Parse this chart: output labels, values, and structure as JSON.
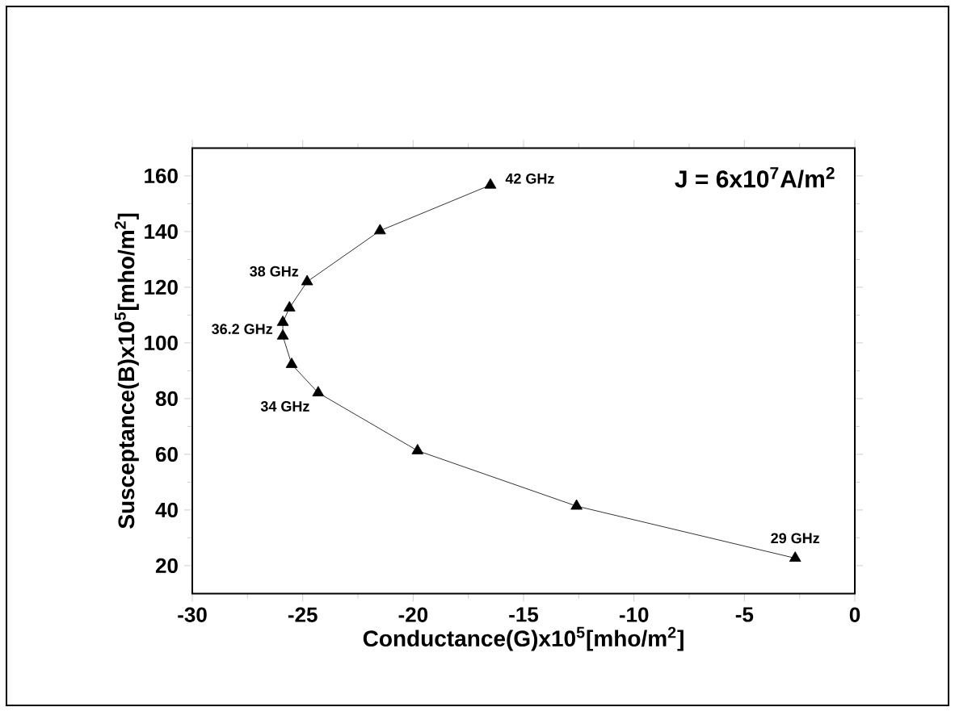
{
  "chart_data": {
    "type": "line",
    "xlabel": "Conductance(G)x10$^{5}$[mho/m$^{2}$]",
    "ylabel": "Susceptance(B)x10$^{5}$[mho/m$^{2}$]",
    "x": [
      -16.5,
      -21.5,
      -24.8,
      -25.6,
      -25.9,
      -25.9,
      -25.5,
      -24.3,
      -19.8,
      -12.6,
      -2.7
    ],
    "values": [
      156.7,
      140.3,
      122,
      112.6,
      107.4,
      102.5,
      92.3,
      82.1,
      61.3,
      41.4,
      22.7
    ],
    "color": "#000000",
    "marker": "triangle",
    "line_style": "solid",
    "grid": false,
    "xlim": [
      -30,
      0
    ],
    "xticks": [
      -30,
      -25,
      -20,
      -15,
      -10,
      -5,
      0
    ],
    "ylim": [
      10,
      170
    ],
    "yticks": [
      20,
      40,
      60,
      80,
      100,
      120,
      140,
      160
    ],
    "annotations": [
      {
        "text": "42 GHz",
        "x": -16.5,
        "y": 156.7
      },
      {
        "text": "38 GHz",
        "x": -24.8,
        "y": 122
      },
      {
        "text": "36.2 GHz",
        "x": -25.9,
        "y": 105
      },
      {
        "text": "34 GHz",
        "x": -24.3,
        "y": 82.1
      },
      {
        "text": "29 GHz",
        "x": -2.7,
        "y": 22.7
      },
      "J = 6x10$^{7}$A/m$^{2}$"
    ]
  }
}
